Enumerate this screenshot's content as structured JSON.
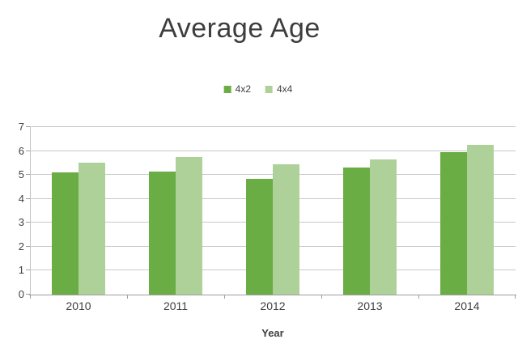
{
  "chart_data": {
    "type": "bar",
    "title": "Average Age",
    "categories": [
      "2010",
      "2011",
      "2012",
      "2013",
      "2014"
    ],
    "series": [
      {
        "name": "4x2",
        "color": "#6AAD45",
        "values": [
          5.1,
          5.15,
          4.85,
          5.3,
          5.95
        ]
      },
      {
        "name": "4x4",
        "color": "#AED19A",
        "values": [
          5.5,
          5.75,
          5.45,
          5.65,
          6.25
        ]
      }
    ],
    "xlabel": "Year",
    "ylabel": "",
    "ylim": [
      0,
      7
    ],
    "ytick_step": 1,
    "grid": true,
    "legend_position": "top-center"
  },
  "colors": {
    "gridline": "#C9C9C9",
    "axis": "#9E9E9E",
    "text": "#3F3F3F",
    "background": "#FFFFFF"
  }
}
